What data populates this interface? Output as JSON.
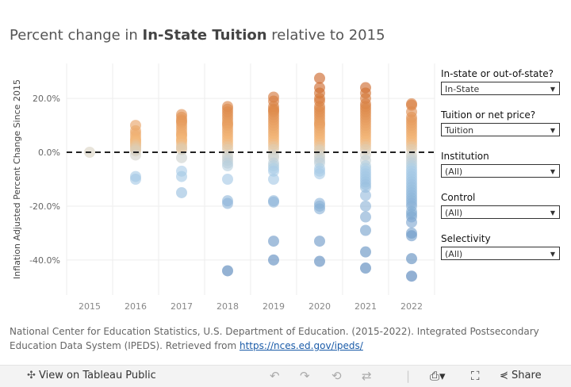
{
  "title": {
    "prefix": "Percent change in ",
    "bold": "In-State Tuition",
    "suffix": " relative to 2015"
  },
  "filters": [
    {
      "label": "In-state or out-of-state?",
      "value": "In-State"
    },
    {
      "label": "Tuition or net price?",
      "value": "Tuition"
    },
    {
      "label": "Institution",
      "value": "(All)"
    },
    {
      "label": "Control",
      "value": "(All)"
    },
    {
      "label": "Selectivity",
      "value": "(All)"
    }
  ],
  "source": {
    "text": "National Center for Education Statistics, U.S. Department of Education. (2015-2022). Integrated Postsecondary Education Data System (IPEDS). Retrieved from ",
    "link": "https://nces.ed.gov/ipeds/"
  },
  "toolbar": {
    "view_label": "View on Tableau Public",
    "share_label": "Share"
  },
  "chart_data": {
    "type": "scatter",
    "ylabel": "Inflation Adjusted Percent Change Since 2015",
    "xlabel": "",
    "categories": [
      "2015",
      "2016",
      "2017",
      "2018",
      "2019",
      "2020",
      "2021",
      "2022"
    ],
    "yticks": [
      "20.0%",
      "0.0%",
      "-20.0%",
      "-40.0%"
    ],
    "ytick_values": [
      20,
      0,
      -20,
      -40
    ],
    "ylim": [
      -53,
      33
    ],
    "reference_line": 0,
    "color_scale": {
      "negative": "#4a7cb5",
      "neutral": "#d9d2c2",
      "positive": "#c95f1f"
    },
    "points": {
      "2015": [
        0
      ],
      "2016": [
        10,
        8,
        7,
        6,
        5,
        4.5,
        4,
        3.5,
        3,
        2.5,
        2,
        1.5,
        1,
        0.5,
        -1,
        -9,
        -10
      ],
      "2017": [
        14,
        13,
        12,
        11.5,
        11,
        10,
        9,
        8,
        7,
        6.5,
        6,
        5,
        4.5,
        4,
        3,
        2,
        1.5,
        1,
        -2,
        -7,
        -9,
        -15
      ],
      "2018": [
        17,
        16,
        15,
        14,
        13,
        12,
        11,
        10.5,
        10,
        9,
        8,
        7,
        6,
        5,
        4,
        3,
        2,
        1,
        -1,
        -2,
        -3,
        -4,
        -5,
        -10,
        -18,
        -19,
        -44
      ],
      "2019": [
        20.5,
        19,
        17,
        16,
        15.5,
        15,
        14,
        13,
        12,
        11,
        10,
        9,
        8,
        7,
        6,
        5,
        4,
        3,
        2,
        1,
        -1,
        -2,
        -4,
        -5,
        -6,
        -7,
        -10,
        -18,
        -18.5,
        -33,
        -40
      ],
      "2020": [
        27.5,
        24,
        22,
        20,
        19,
        17,
        16,
        15,
        14,
        13,
        12,
        11,
        10.5,
        10,
        9,
        8,
        7,
        6,
        5,
        4,
        3,
        2,
        1,
        0.5,
        -1,
        -2,
        -3,
        -4,
        -6,
        -7,
        -8,
        -19,
        -20,
        -21,
        -33,
        -40.5
      ],
      "2021": [
        24,
        22,
        20,
        18,
        17,
        16,
        15,
        14,
        13,
        12,
        11,
        10,
        9,
        8,
        7,
        6,
        5,
        4,
        3,
        2,
        1,
        -1,
        -3,
        -5,
        -6,
        -7,
        -8,
        -9,
        -10,
        -11,
        -12,
        -13,
        -16,
        -20,
        -24,
        -29,
        -37,
        -43
      ],
      "2022": [
        18,
        17.5,
        15,
        13,
        12,
        11,
        10,
        9,
        8,
        7,
        6,
        5,
        4,
        3,
        2,
        1,
        -1,
        -2,
        -3,
        -4,
        -5,
        -6,
        -7,
        -8,
        -9,
        -10,
        -11,
        -12,
        -13,
        -14,
        -15,
        -16,
        -17,
        -18,
        -19,
        -20,
        -22,
        -23,
        -24,
        -26,
        -30,
        -31,
        -39.5,
        -46
      ]
    }
  }
}
